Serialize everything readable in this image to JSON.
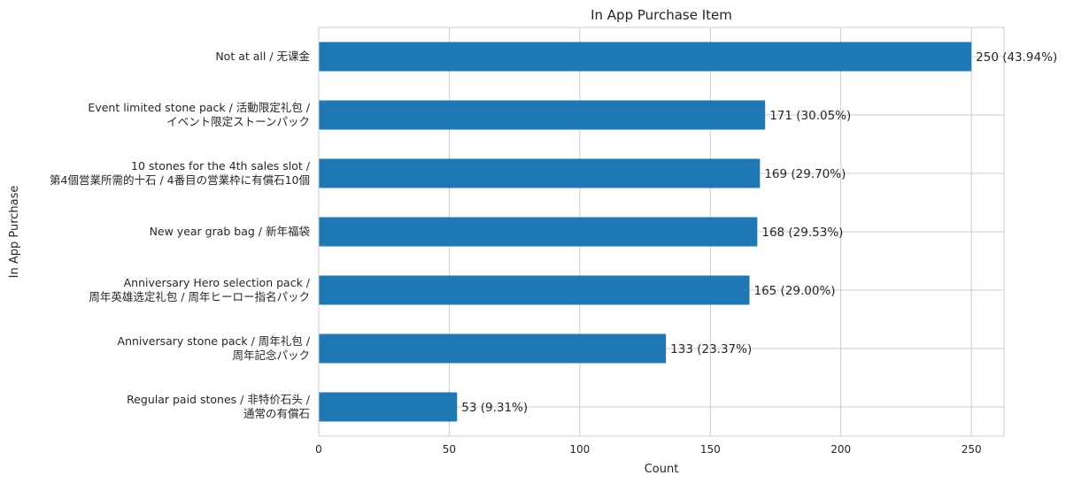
{
  "chart_data": {
    "type": "bar",
    "orientation": "horizontal",
    "title": "In App Purchase Item",
    "xlabel": "Count",
    "ylabel": "In App Purchase",
    "xlim": [
      0,
      262.5
    ],
    "xticks": [
      0,
      50,
      100,
      150,
      200,
      250
    ],
    "grid": true,
    "bar_color": "#1f77b4",
    "categories": [
      [
        "Not at all / 无课金"
      ],
      [
        "Event limited stone pack / 活動限定礼包 /",
        "イベント限定ストーンパック"
      ],
      [
        "10 stones for the 4th sales slot /",
        "第4個営業所需的十石 / 4番目の営業枠に有償石10個"
      ],
      [
        "New year grab bag / 新年福袋"
      ],
      [
        "Anniversary Hero selection pack /",
        "周年英雄选定礼包 / 周年ヒーロー指名パック"
      ],
      [
        "Anniversary stone pack / 周年礼包 /",
        "周年記念パック"
      ],
      [
        "Regular paid stones  / 非特价石头 /",
        "通常の有償石"
      ]
    ],
    "values": [
      250,
      171,
      169,
      168,
      165,
      133,
      53
    ],
    "data_labels": [
      "250 (43.94%)",
      "171 (30.05%)",
      "169 (29.70%)",
      "168 (29.53%)",
      "165 (29.00%)",
      "133 (23.37%)",
      "53 (9.31%)"
    ]
  }
}
